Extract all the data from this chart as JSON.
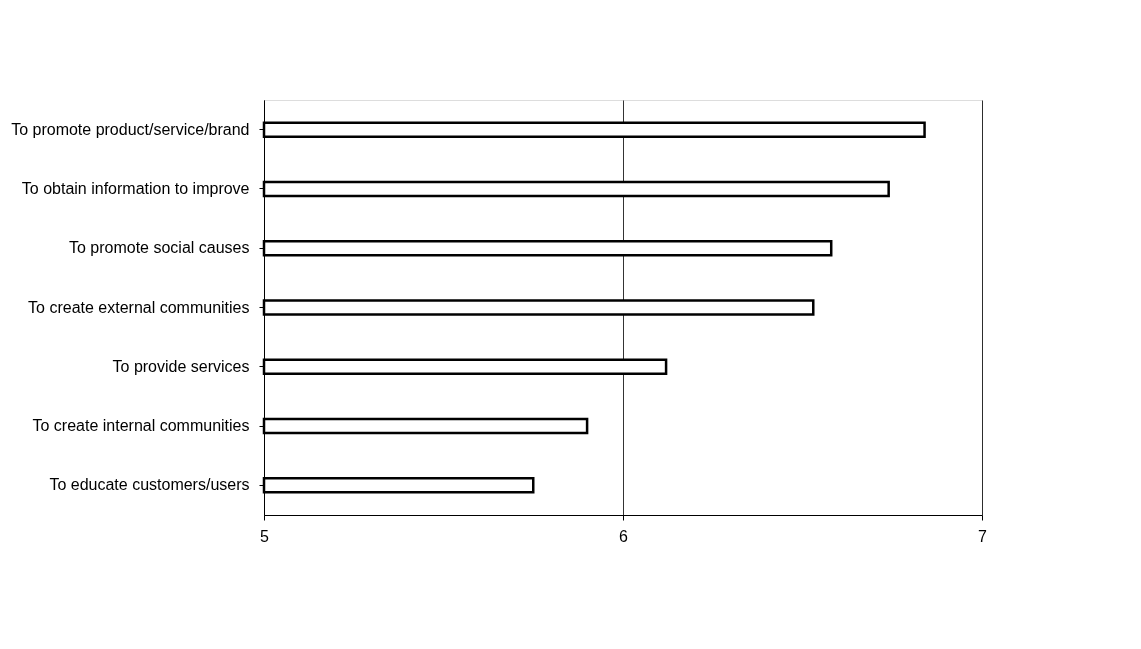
{
  "chart_data": {
    "type": "bar",
    "orientation": "horizontal",
    "categories": [
      "To promote product/service/brand",
      "To obtain information to improve",
      "To promote social causes",
      "To create external communities",
      "To provide services",
      "To create internal communities",
      "To educate customers/users"
    ],
    "values": [
      6.84,
      6.74,
      6.58,
      6.53,
      6.12,
      5.9,
      5.75
    ],
    "color": "#ffffff",
    "xlim": [
      5,
      7
    ],
    "xticks": [
      5,
      6,
      7
    ],
    "grid": "x"
  }
}
